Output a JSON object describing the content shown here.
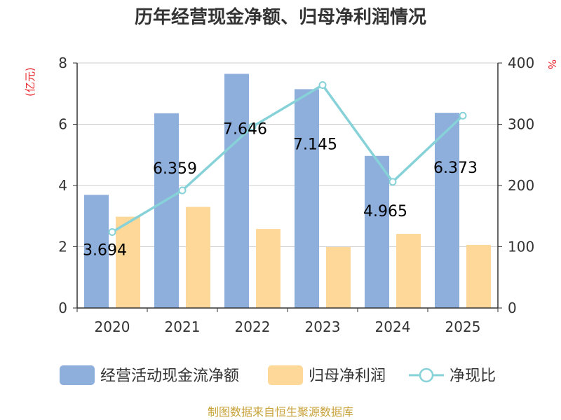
{
  "chart_data": {
    "type": "bar+line",
    "title": "历年经营现金净额、归母净利润情况",
    "categories": [
      "2020",
      "2021",
      "2022",
      "2023",
      "2024",
      "2025"
    ],
    "series": [
      {
        "name": "经营活动现金流净额",
        "type": "bar",
        "axis": "left",
        "values": [
          3.694,
          6.359,
          7.646,
          7.145,
          4.965,
          6.373
        ],
        "color": "#8eaedc"
      },
      {
        "name": "归母净利润",
        "type": "bar",
        "axis": "left",
        "values": [
          2.98,
          3.3,
          2.58,
          1.99,
          2.42,
          2.06
        ],
        "color": "#fdd898"
      },
      {
        "name": "净现比",
        "type": "line",
        "axis": "right",
        "values": [
          124,
          192,
          296,
          364,
          206,
          314
        ],
        "color": "#86d2d8"
      }
    ],
    "data_labels": [
      "3.694",
      "6.359",
      "7.646",
      "7.145",
      "4.965",
      "6.373"
    ],
    "y_left": {
      "unit": "(亿元)",
      "ylim": [
        0,
        8
      ],
      "ticks": [
        "0",
        "2",
        "4",
        "6",
        "8"
      ]
    },
    "y_right": {
      "unit": "%",
      "ylim": [
        0,
        400
      ],
      "ticks": [
        "0",
        "100",
        "200",
        "300",
        "400"
      ]
    },
    "grid": true,
    "legend": [
      "经营活动现金流净额",
      "归母净利润",
      "净现比"
    ],
    "legend_position": "bottom",
    "source": "制图数据来自恒生聚源数据库"
  },
  "colors": {
    "unit": "#e8252a",
    "source": "#c8a23a",
    "axis": "#333333",
    "grid": "#cccccc"
  }
}
